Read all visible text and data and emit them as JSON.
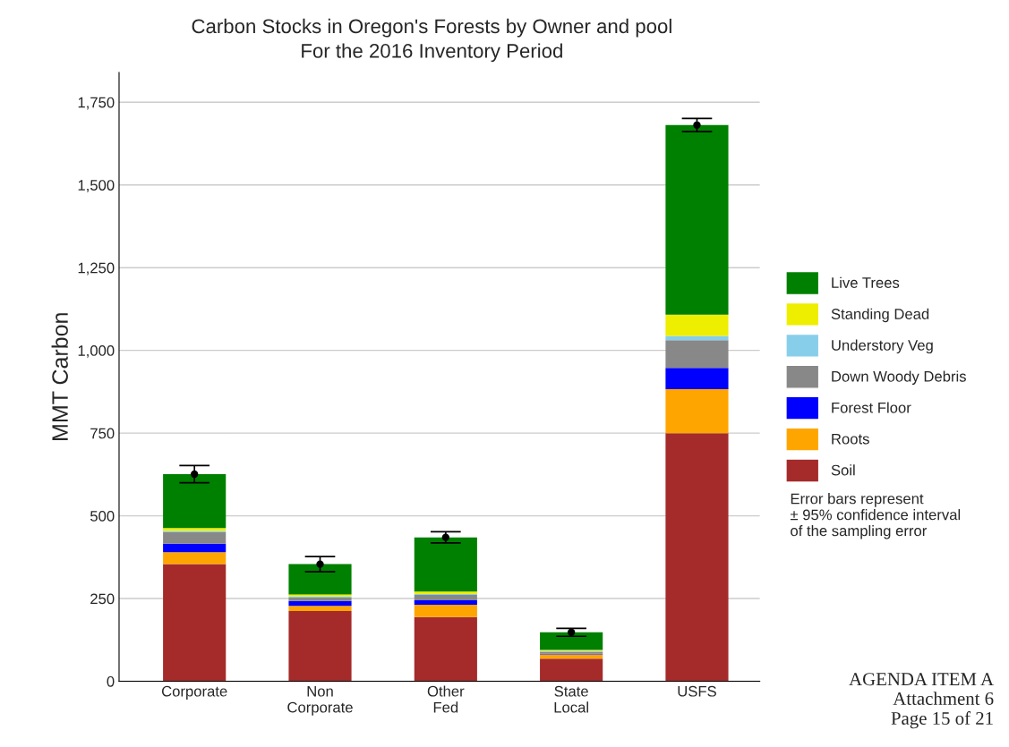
{
  "chart_data": {
    "type": "bar",
    "stacked": true,
    "title": "Carbon Stocks in Oregon's Forests by Owner and pool",
    "subtitle": "For the 2016 Inventory Period",
    "ylabel": "MMT Carbon",
    "categories": [
      "Corporate",
      "Non\nCorporate",
      "Other\nFed",
      "State\nLocal",
      "USFS"
    ],
    "series": [
      {
        "name": "Soil",
        "color": "#a52a2a",
        "values": [
          354,
          212,
          194,
          68,
          750
        ]
      },
      {
        "name": "Roots",
        "color": "#ffa500",
        "values": [
          36,
          16,
          37,
          13,
          133
        ]
      },
      {
        "name": "Forest Floor",
        "color": "#0000ff",
        "values": [
          26,
          15,
          14,
          2,
          64
        ]
      },
      {
        "name": "Down Woody Debris",
        "color": "#888888",
        "values": [
          34,
          10,
          16,
          6,
          84
        ]
      },
      {
        "name": "Understory Veg",
        "color": "#87ceeb",
        "values": [
          4,
          3,
          3,
          2,
          13
        ]
      },
      {
        "name": "Standing Dead",
        "color": "#eeee00",
        "values": [
          9,
          6,
          7,
          4,
          64
        ]
      },
      {
        "name": "Live Trees",
        "color": "#008000",
        "values": [
          163,
          92,
          164,
          53,
          573
        ]
      },
      {
        "type": "scatter",
        "color": "#000000",
        "marker": "circle",
        "x": [
          "Corporate",
          "Non\nCorporate",
          "Other\nFed",
          "State\nLocal",
          "USFS"
        ],
        "values": [
          626,
          354,
          435,
          148,
          1681
        ],
        "errors": [
          26,
          23,
          17,
          12,
          20
        ]
      }
    ],
    "ylim": [
      0,
      1840
    ],
    "yticks": [
      0,
      250,
      500,
      750,
      {
        "value": 1000,
        "label": "1,000"
      },
      {
        "value": 1250,
        "label": "1,250"
      },
      {
        "value": 1500,
        "label": "1,500"
      },
      {
        "value": 1750,
        "label": "1,750"
      }
    ],
    "grid": "y",
    "legend": "right",
    "annotations": [
      "Error bars represent\n± 95% confidence interval\nof the sampling error",
      "AGENDA ITEM A\nAttachment 6\nPage 15 of 21"
    ]
  }
}
